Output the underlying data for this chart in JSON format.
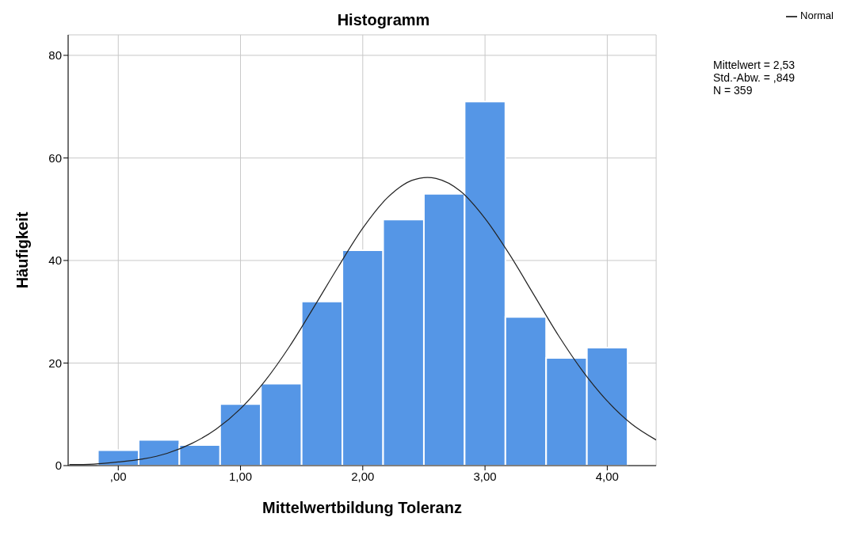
{
  "chart_data": {
    "type": "histogram",
    "title": "Histogramm",
    "xlabel": "Mittelwertbildung Toleranz",
    "ylabel": "Häufigkeit",
    "bins": [
      -0.1667,
      0.1667,
      0.5,
      0.8333,
      1.1667,
      1.5,
      1.8333,
      2.1667,
      2.5,
      2.8333,
      3.1667,
      3.5,
      3.8333,
      4.1667
    ],
    "values": [
      3,
      5,
      4,
      12,
      16,
      32,
      42,
      48,
      53,
      71,
      29,
      21,
      23
    ],
    "color": "#5596e6",
    "series": [
      {
        "name": "Normal",
        "type": "line",
        "color": "#222222",
        "x": [
          -0.4,
          -0.2,
          0,
          0.2,
          0.4,
          0.6,
          0.8,
          1,
          1.2,
          1.4,
          1.6,
          1.8,
          2,
          2.2,
          2.4,
          2.53,
          2.6,
          2.8,
          3,
          3.2,
          3.4,
          3.6,
          3.8,
          4,
          4.2,
          4.4
        ],
        "values": [
          0.2,
          0.3,
          0.7,
          1.3,
          2.4,
          4.3,
          7.1,
          11.1,
          16.5,
          23.2,
          30.9,
          38.8,
          46.3,
          52.2,
          55.6,
          56.2,
          56,
          53.5,
          48.2,
          41.2,
          33.3,
          25.4,
          18.4,
          12.6,
          8.1,
          5
        ]
      }
    ],
    "xlim": [
      -0.41,
      4.4
    ],
    "xticks": [
      {
        "value": 0,
        "label": ",00"
      },
      {
        "value": 1,
        "label": "1,00"
      },
      {
        "value": 2,
        "label": "2,00"
      },
      {
        "value": 3,
        "label": "3,00"
      },
      {
        "value": 4,
        "label": "4,00"
      }
    ],
    "ylim": [
      0,
      84
    ],
    "yticks": [
      0,
      20,
      40,
      60,
      80
    ],
    "grid": true,
    "legend": "top right",
    "marker": "none",
    "line_style": "solid",
    "annotations": [
      "Mittelwert = 2,53",
      "Std.-Abw. = ,849",
      "N = 359"
    ]
  }
}
